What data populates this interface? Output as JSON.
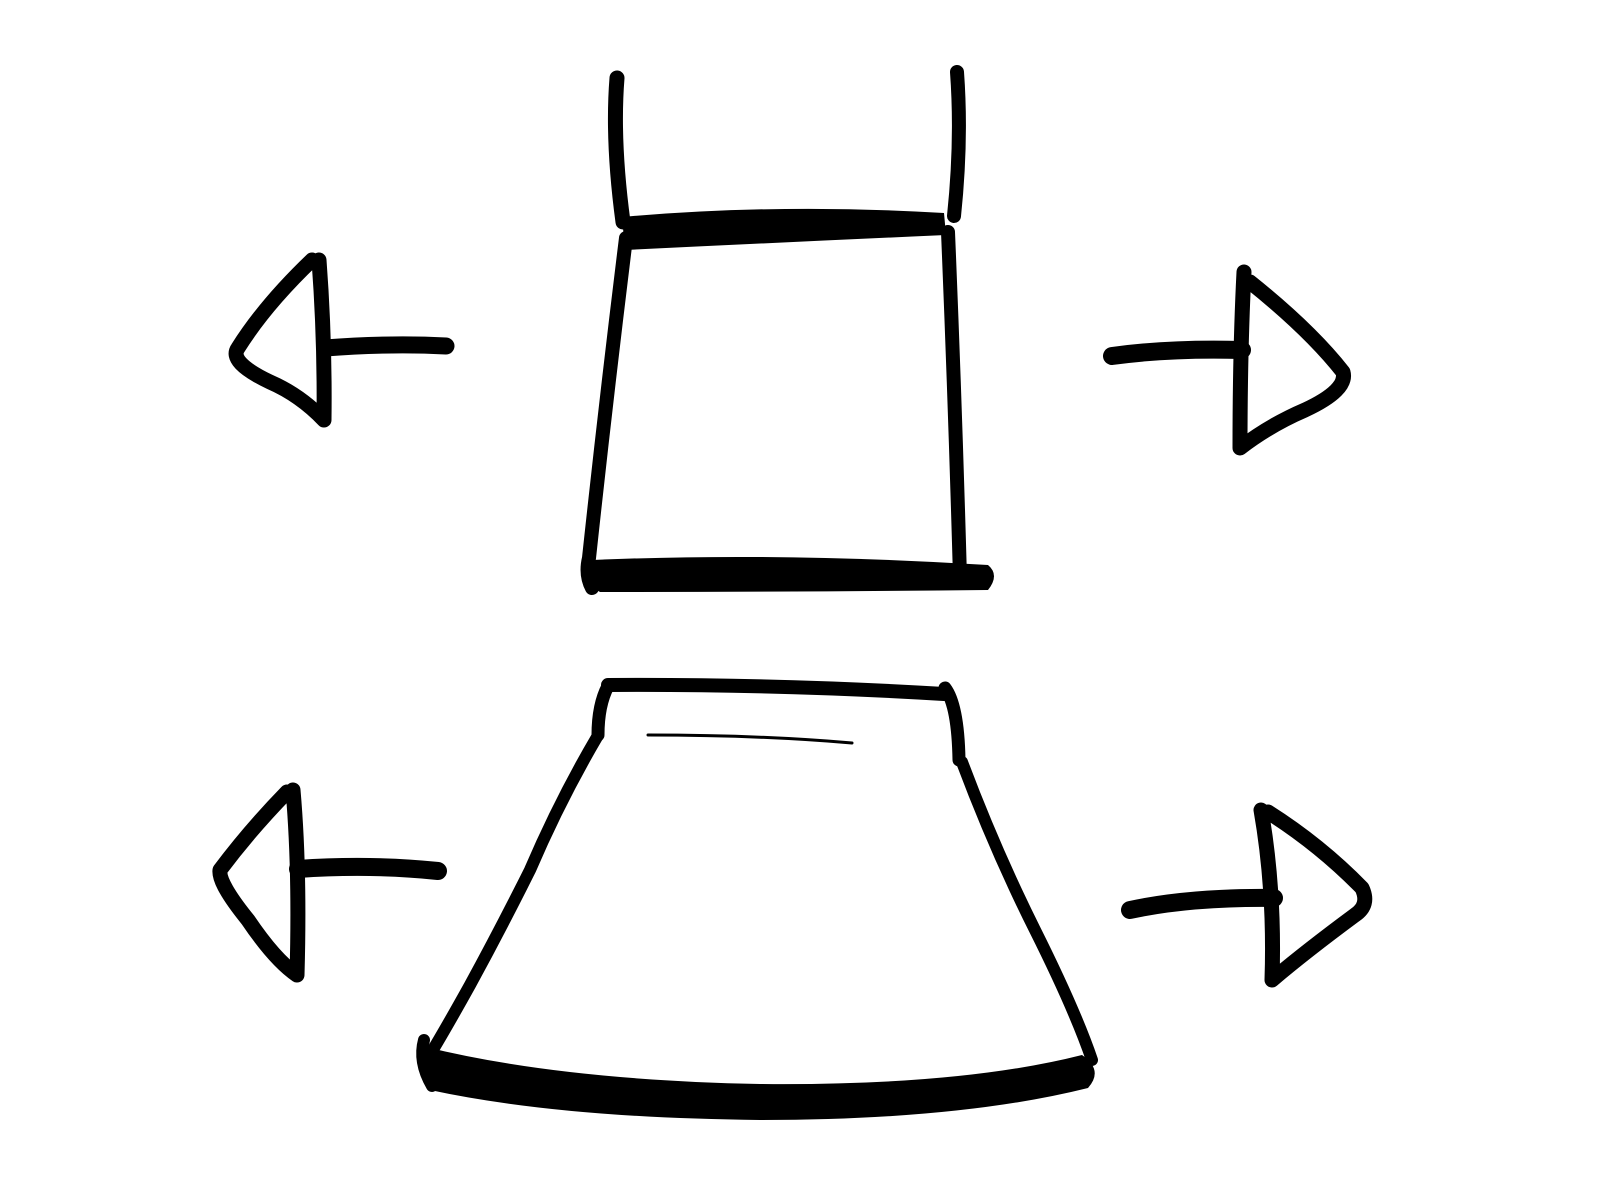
{
  "colors": {
    "ink": "#000000",
    "paper": "#ffffff"
  },
  "sketch": {
    "garments": [
      {
        "name": "tank-top",
        "icon": "tank-top-icon"
      },
      {
        "name": "a-line-skirt",
        "icon": "skirt-icon"
      }
    ],
    "arrows": [
      {
        "icon": "arrow-left-icon"
      },
      {
        "icon": "arrow-right-icon"
      },
      {
        "icon": "arrow-left-icon"
      },
      {
        "icon": "arrow-right-icon"
      }
    ]
  }
}
